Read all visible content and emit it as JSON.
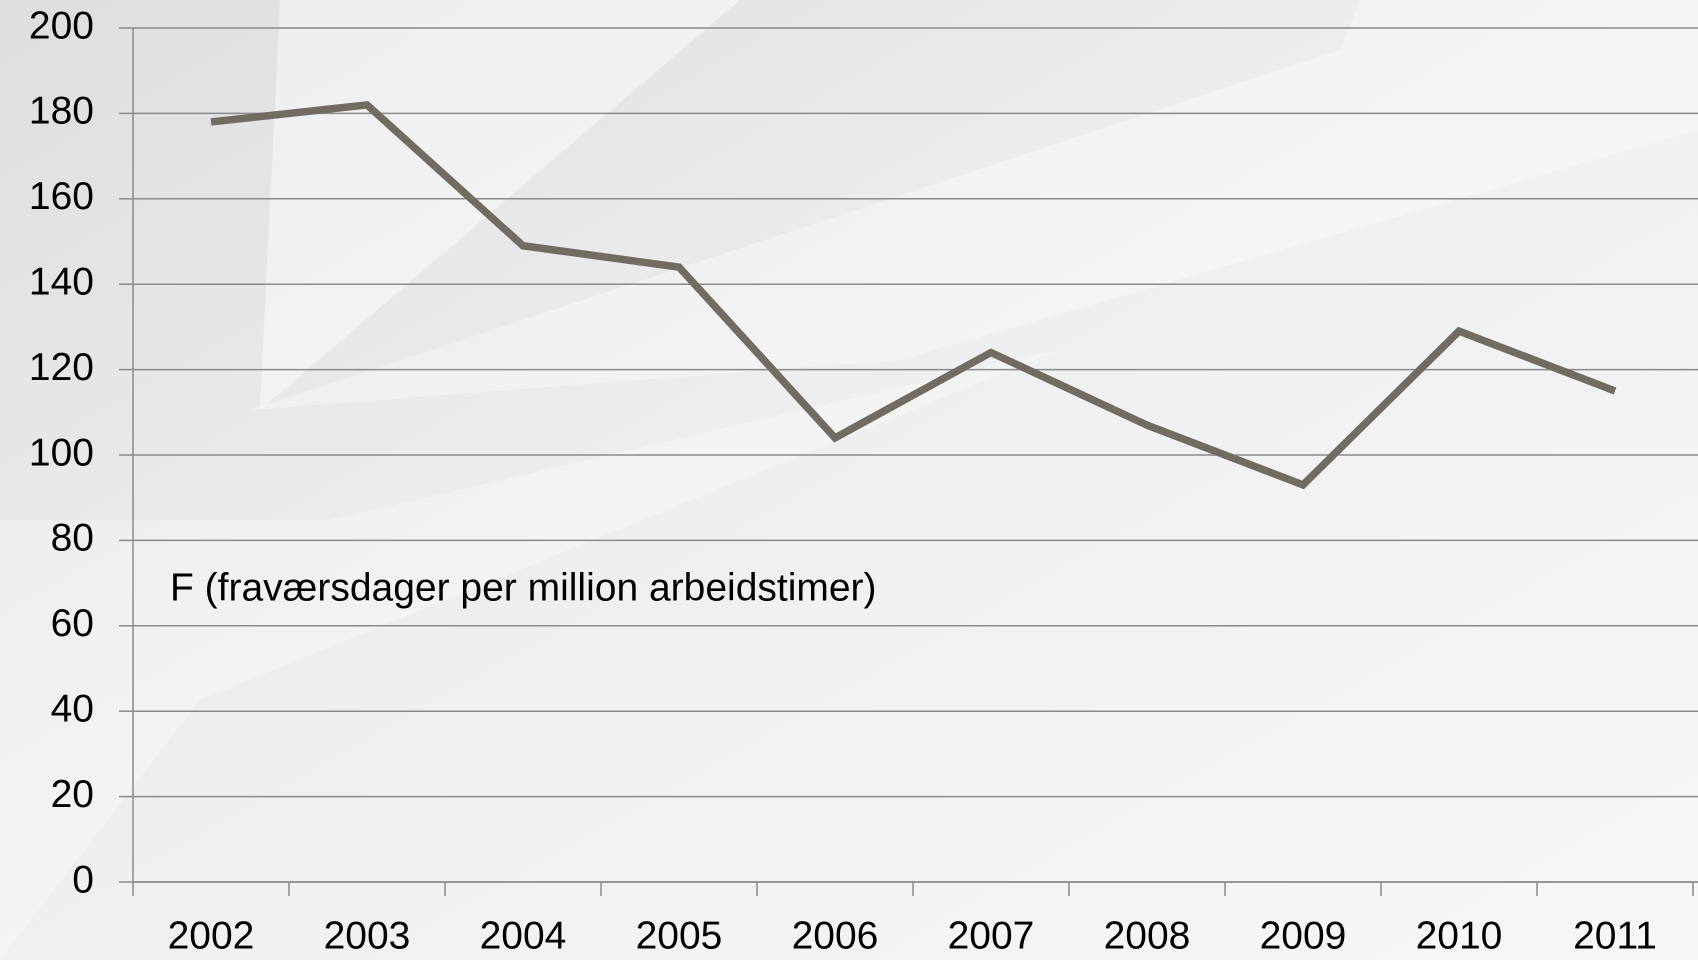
{
  "chart_data": {
    "type": "line",
    "annotation": "F (fraværsdager per million arbeidstimer)",
    "categories": [
      "2002",
      "2003",
      "2004",
      "2005",
      "2006",
      "2007",
      "2008",
      "2009",
      "2010",
      "2011"
    ],
    "series": [
      {
        "name": "F",
        "color": "#726b62",
        "values": [
          178,
          182,
          149,
          144,
          104,
          124,
          107,
          93,
          129,
          115
        ]
      }
    ],
    "ylim": [
      0,
      200
    ],
    "yticks": [
      0,
      20,
      40,
      60,
      80,
      100,
      120,
      140,
      160,
      180,
      200
    ],
    "grid": true
  }
}
